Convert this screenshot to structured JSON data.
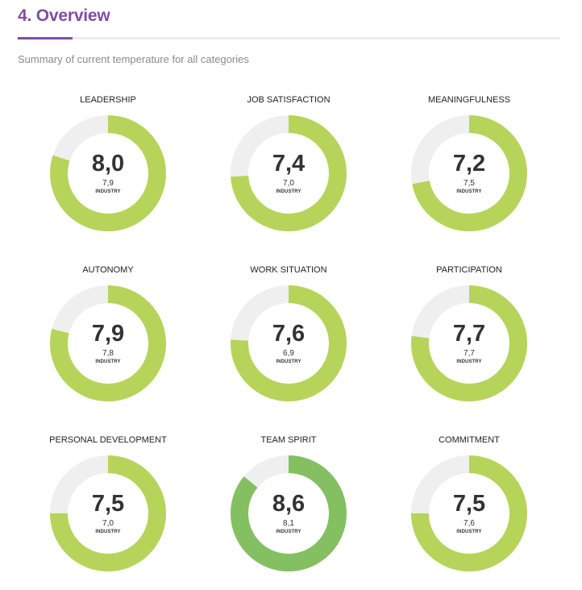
{
  "header": {
    "title": "4. Overview",
    "subtitle": "Summary of current temperature for all categories"
  },
  "colors": {
    "accent": "#7f4ea3",
    "donut_fill_default": "#b6d45a",
    "donut_fill_highlight": "#84c061",
    "donut_track": "#efefef"
  },
  "industry_label": "INDUSTRY",
  "categories": [
    {
      "label": "LEADERSHIP",
      "score_text": "8,0",
      "score": 8.0,
      "industry_text": "7,9",
      "industry": 7.9,
      "highlight": false
    },
    {
      "label": "JOB SATISFACTION",
      "score_text": "7,4",
      "score": 7.4,
      "industry_text": "7,0",
      "industry": 7.0,
      "highlight": false
    },
    {
      "label": "MEANINGFULNESS",
      "score_text": "7,2",
      "score": 7.2,
      "industry_text": "7,5",
      "industry": 7.5,
      "highlight": false
    },
    {
      "label": "AUTONOMY",
      "score_text": "7,9",
      "score": 7.9,
      "industry_text": "7,8",
      "industry": 7.8,
      "highlight": false
    },
    {
      "label": "WORK SITUATION",
      "score_text": "7,6",
      "score": 7.6,
      "industry_text": "6,9",
      "industry": 6.9,
      "highlight": false
    },
    {
      "label": "PARTICIPATION",
      "score_text": "7,7",
      "score": 7.7,
      "industry_text": "7,7",
      "industry": 7.7,
      "highlight": false
    },
    {
      "label": "PERSONAL DEVELOPMENT",
      "score_text": "7,5",
      "score": 7.5,
      "industry_text": "7,0",
      "industry": 7.0,
      "highlight": false
    },
    {
      "label": "TEAM SPIRIT",
      "score_text": "8,6",
      "score": 8.6,
      "industry_text": "8,1",
      "industry": 8.1,
      "highlight": true
    },
    {
      "label": "COMMITMENT",
      "score_text": "7,5",
      "score": 7.5,
      "industry_text": "7,6",
      "industry": 7.6,
      "highlight": false
    }
  ],
  "scale_max": 10
}
